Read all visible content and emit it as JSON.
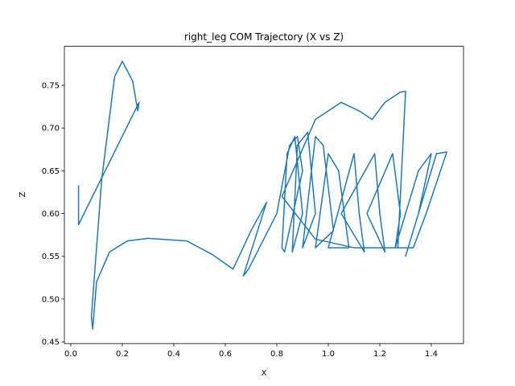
{
  "chart_data": {
    "type": "line",
    "title": "right_leg COM Trajectory (X vs Z)",
    "xlabel": "X",
    "ylabel": "Z",
    "x": [
      0.03,
      0.03,
      0.265,
      0.26,
      0.24,
      0.2,
      0.17,
      0.12,
      0.09,
      0.08,
      0.085,
      0.1,
      0.15,
      0.22,
      0.3,
      0.45,
      0.55,
      0.63,
      0.7,
      0.76,
      0.67,
      0.69,
      0.8,
      0.85,
      0.88,
      0.9,
      0.83,
      0.82,
      0.84,
      0.87,
      0.9,
      0.86,
      0.88,
      0.92,
      0.95,
      0.9,
      0.95,
      0.98,
      1.02,
      0.95,
      1.0,
      1.04,
      1.08,
      1.0,
      1.1,
      1.12,
      1.14,
      1.05,
      1.18,
      1.2,
      1.22,
      1.15,
      1.25,
      1.28,
      1.26,
      1.35,
      1.4,
      1.35,
      1.3,
      1.42,
      1.46,
      1.38,
      1.33,
      1.2,
      1.1,
      0.95,
      0.82,
      0.95,
      1.05,
      1.12,
      1.17,
      1.22,
      1.28,
      1.3,
      1.27
    ],
    "series": [
      {
        "color": "#1f77b4",
        "values": [
          0.633,
          0.587,
          0.73,
          0.72,
          0.755,
          0.778,
          0.76,
          0.64,
          0.52,
          0.48,
          0.465,
          0.52,
          0.555,
          0.568,
          0.571,
          0.568,
          0.552,
          0.535,
          0.58,
          0.613,
          0.527,
          0.535,
          0.6,
          0.68,
          0.69,
          0.65,
          0.555,
          0.56,
          0.67,
          0.69,
          0.6,
          0.555,
          0.68,
          0.695,
          0.6,
          0.56,
          0.69,
          0.68,
          0.58,
          0.56,
          0.67,
          0.65,
          0.56,
          0.56,
          0.67,
          0.6,
          0.555,
          0.6,
          0.67,
          0.6,
          0.555,
          0.6,
          0.67,
          0.6,
          0.56,
          0.65,
          0.67,
          0.6,
          0.55,
          0.67,
          0.672,
          0.6,
          0.56,
          0.56,
          0.56,
          0.57,
          0.62,
          0.71,
          0.73,
          0.72,
          0.71,
          0.73,
          0.742,
          0.743,
          0.56
        ]
      }
    ],
    "xlim": [
      -0.025,
      1.525
    ],
    "ylim": [
      0.448,
      0.7955
    ],
    "xticks": [
      {
        "value": 0,
        "label": "0.0"
      },
      0.2,
      0.4,
      0.6,
      0.8,
      {
        "value": 1,
        "label": "1.0"
      },
      1.2,
      1.4
    ],
    "yticks": [
      0.45,
      {
        "value": 0.5,
        "label": "0.50"
      },
      0.55,
      {
        "value": 0.6,
        "label": "0.60"
      },
      0.65,
      {
        "value": 0.7,
        "label": "0.70"
      },
      0.75
    ]
  }
}
